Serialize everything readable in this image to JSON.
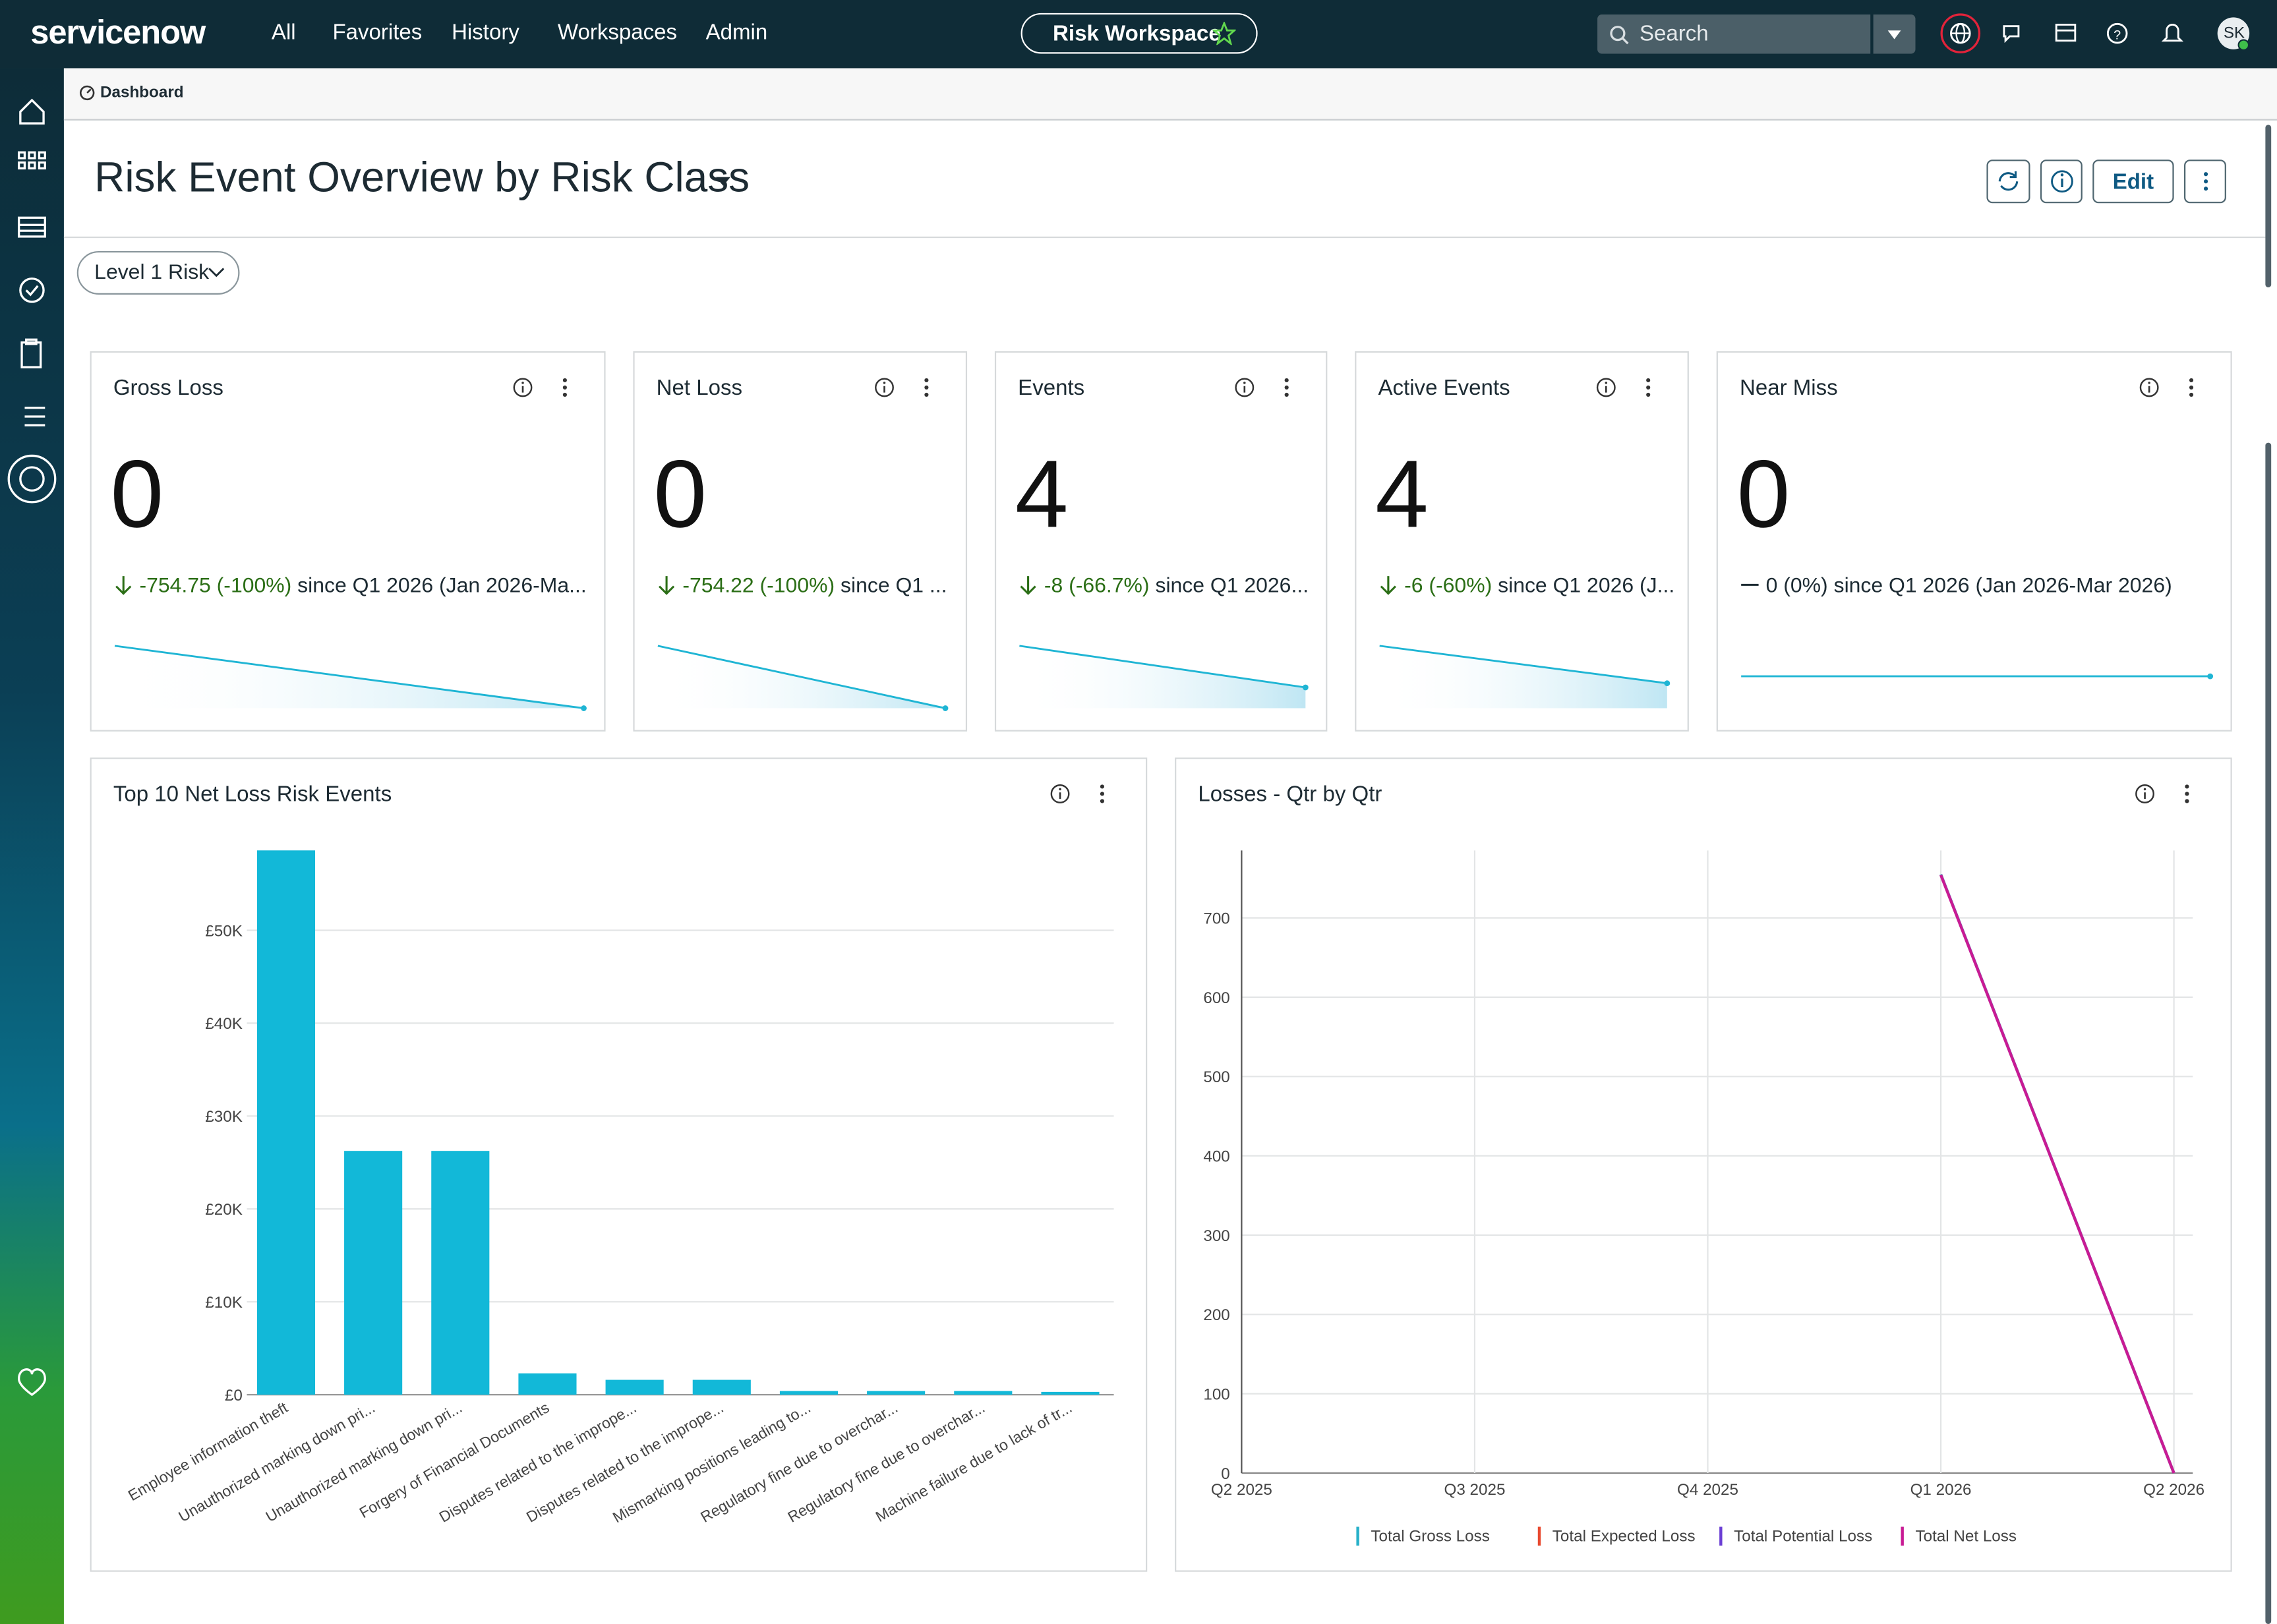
{
  "nav": {
    "logo": "servicenow",
    "items": [
      "All",
      "Favorites",
      "History",
      "Workspaces",
      "Admin"
    ],
    "workspace": "Risk Workspace",
    "search": "Search",
    "avatar": "SK"
  },
  "breadcrumb": "Dashboard",
  "page": {
    "title": "Risk Event Overview by Risk Class",
    "edit": "Edit",
    "filter": "Level 1 Risk"
  },
  "kpis": [
    {
      "title": "Gross Loss",
      "value": 0,
      "change": "-754.75 (-100%)",
      "since": "since Q1 2026 (Jan 2026-Ma...",
      "trend": [
        754.75,
        0
      ]
    },
    {
      "title": "Net Loss",
      "value": 0,
      "change": "-754.22 (-100%)",
      "since": "since Q1 ...",
      "trend": [
        754.22,
        0
      ]
    },
    {
      "title": "Events",
      "value": 4,
      "change": "-8 (-66.7%)",
      "since": "since Q1 2026...",
      "trend": [
        12,
        4
      ]
    },
    {
      "title": "Active Events",
      "value": 4,
      "change": "-6 (-60%)",
      "since": "since Q1 2026 (J...",
      "trend": [
        10,
        4
      ]
    },
    {
      "title": "Near Miss",
      "value": 0,
      "change": "0 (0%)",
      "since": "since Q1 2026 (Jan 2026-Mar 2026)",
      "trend": [
        0,
        0
      ]
    }
  ],
  "chart_data": [
    {
      "type": "bar",
      "title": "Top 10 Net Loss Risk Events",
      "color": "#12b8d8",
      "grid": true,
      "categories": [
        "Employee information theft",
        "Unauthorized marking down pri...",
        "Unauthorized marking down pri...",
        "Forgery of Financial Documents",
        "Disputes related to the imprope...",
        "Disputes related to the imprope...",
        "Mismarking positions leading to...",
        "Regulatory fine due to overchar...",
        "Regulatory fine due to overchar...",
        "Machine failure due to lack of tr..."
      ],
      "values": [
        58600,
        26250,
        26250,
        2300,
        1600,
        1600,
        400,
        400,
        400,
        300
      ],
      "ylim": [
        0,
        60000
      ],
      "yticks": [
        {
          "value": 0,
          "label": "£0"
        },
        {
          "value": 10000,
          "label": "£10K"
        },
        {
          "value": 20000,
          "label": "£20K"
        },
        {
          "value": 30000,
          "label": "£30K"
        },
        {
          "value": 40000,
          "label": "£40K"
        },
        {
          "value": 50000,
          "label": "£50K"
        }
      ]
    },
    {
      "type": "line",
      "title": "Losses - Qtr by Qtr",
      "grid": true,
      "categories": [
        "Q2 2025",
        "Q3 2025",
        "Q4 2025",
        "Q1 2026",
        "Q2 2026"
      ],
      "series": [
        {
          "name": "Total Gross Loss",
          "color": "#27b0c9",
          "values": [
            null,
            null,
            null,
            754.75,
            0
          ]
        },
        {
          "name": "Total Expected Loss",
          "color": "#e8492f",
          "values": [
            null,
            null,
            null,
            null,
            null
          ]
        },
        {
          "name": "Total Potential Loss",
          "color": "#6b3fd4",
          "values": [
            null,
            null,
            null,
            null,
            null
          ]
        },
        {
          "name": "Total Net Loss",
          "color": "#c81b94",
          "values": [
            null,
            null,
            null,
            754.22,
            0
          ]
        }
      ],
      "ylim": [
        0,
        785
      ],
      "yticks": [
        0,
        100,
        200,
        300,
        400,
        500,
        600,
        700
      ]
    }
  ]
}
